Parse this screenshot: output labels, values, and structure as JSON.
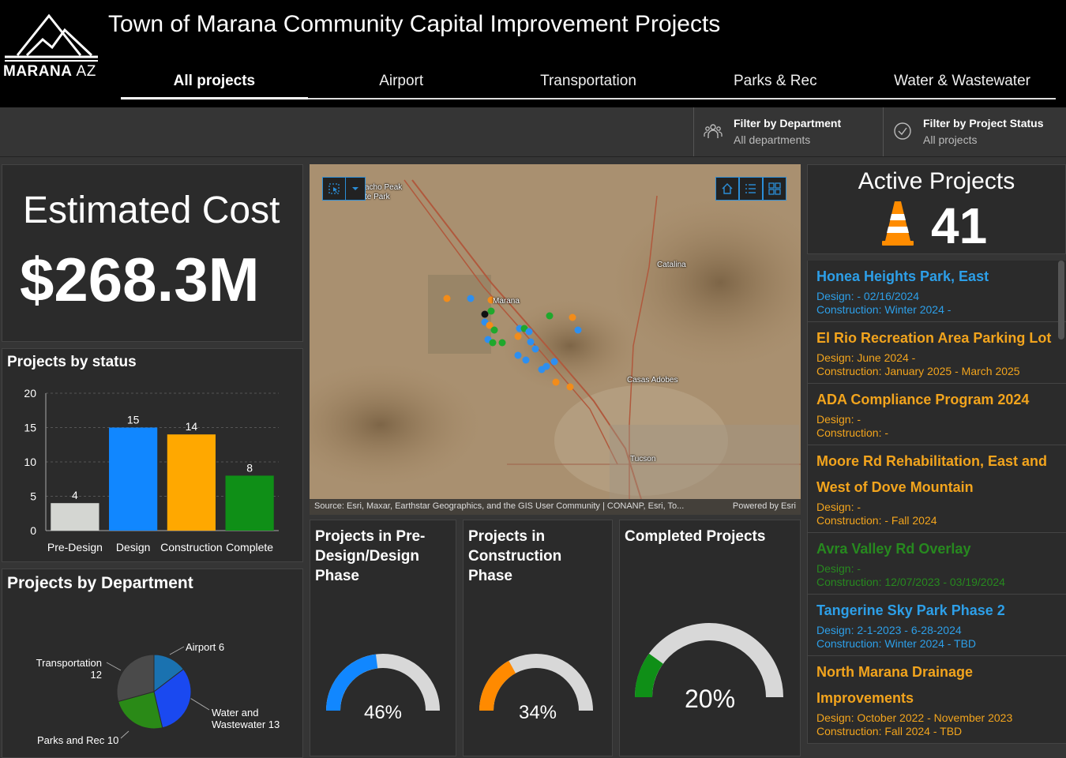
{
  "header": {
    "title": "Town of Marana Community Capital Improvement Projects",
    "logo_name": "MARANA",
    "logo_suffix": "AZ",
    "tabs": [
      {
        "label": "All projects"
      },
      {
        "label": "Airport"
      },
      {
        "label": "Transportation"
      },
      {
        "label": "Parks & Rec"
      },
      {
        "label": "Water & Wastewater"
      }
    ]
  },
  "filters": {
    "department": {
      "title": "Filter by Department",
      "value": "All departments"
    },
    "status": {
      "title": "Filter by Project Status",
      "value": "All projects"
    }
  },
  "cost": {
    "label": "Estimated Cost",
    "value": "$268.3M"
  },
  "status_chart": {
    "title": "Projects by status"
  },
  "department_chart": {
    "title": "Projects by Department",
    "labels": {
      "airport": "Airport 6",
      "transportation_1": "Transportation",
      "transportation_2": "12",
      "water_1": "Water and",
      "water_2": "Wastewater 13",
      "parks": "Parks and Rec 10"
    }
  },
  "chart_data": [
    {
      "type": "bar",
      "title": "Projects by status",
      "categories": [
        "Pre-Design",
        "Design",
        "Construction",
        "Complete"
      ],
      "values": [
        4,
        15,
        14,
        8
      ],
      "colors": [
        "#d4d6d2",
        "#1187ff",
        "#ffa800",
        "#0f8f17"
      ],
      "ylim": [
        0,
        20
      ],
      "yticks": [
        "0",
        "5",
        "10",
        "15",
        "20"
      ]
    },
    {
      "type": "pie",
      "title": "Projects by Department",
      "categories": [
        "Airport",
        "Water and Wastewater",
        "Parks and Rec",
        "Transportation"
      ],
      "values": [
        6,
        13,
        10,
        12
      ],
      "colors": [
        "#1a72b0",
        "#1a49f0",
        "#2a8a17",
        "#4a4a4a"
      ]
    }
  ],
  "map": {
    "attribution": "Source: Esri, Maxar, Earthstar Geographics, and the GIS User Community | CONANP, Esri, To...",
    "powered": "Powered by Esri",
    "place_labels": {
      "picacho": "acho Peak",
      "picacho2": "te Park",
      "marana": "Marana",
      "catalina": "Catalina",
      "casas": "Casas Adobes",
      "tucson": "Tucson"
    }
  },
  "gauges": {
    "predesign": {
      "title_1": "Projects in Pre-",
      "title_2": "Design/Design",
      "title_3": "Phase",
      "percent": 46,
      "percent_label": "46%",
      "color": "#1187ff"
    },
    "construction": {
      "title_1": "Projects in",
      "title_2": "Construction",
      "title_3": "Phase",
      "percent": 34,
      "percent_label": "34%",
      "color": "#ff8a00"
    },
    "completed": {
      "title_1": "Completed Projects",
      "percent": 20,
      "percent_label": "20%",
      "color": "#0f8f17"
    }
  },
  "active": {
    "title": "Active Projects",
    "count": "41"
  },
  "projects": [
    {
      "title": "Honea Heights Park, East",
      "design": "Design: - 02/16/2024",
      "construction": "Construction: Winter 2024 -",
      "color": "blue"
    },
    {
      "title": "El Rio Recreation Area Parking Lot",
      "design": "Design: June 2024 -",
      "construction": "Construction: January 2025 - March 2025",
      "color": "orange"
    },
    {
      "title": "ADA Compliance Program 2024",
      "design": "Design: -",
      "construction": "Construction: -",
      "color": "orange"
    },
    {
      "title": "Moore Rd Rehabilitation, East and West of Dove Mountain",
      "design": "Design: -",
      "construction": "Construction: - Fall 2024",
      "color": "orange"
    },
    {
      "title": "Avra Valley Rd Overlay",
      "design": "Design: -",
      "construction": "Construction: 12/07/2023 - 03/19/2024",
      "color": "green"
    },
    {
      "title": "Tangerine Sky Park Phase 2",
      "design": "Design: 2-1-2023 - 6-28-2024",
      "construction": "Construction: Winter 2024 - TBD",
      "color": "blue"
    },
    {
      "title": "North Marana Drainage Improvements",
      "design": "Design: October 2022 - November 2023",
      "construction": "Construction: Fall 2024 - TBD",
      "color": "orange"
    }
  ]
}
